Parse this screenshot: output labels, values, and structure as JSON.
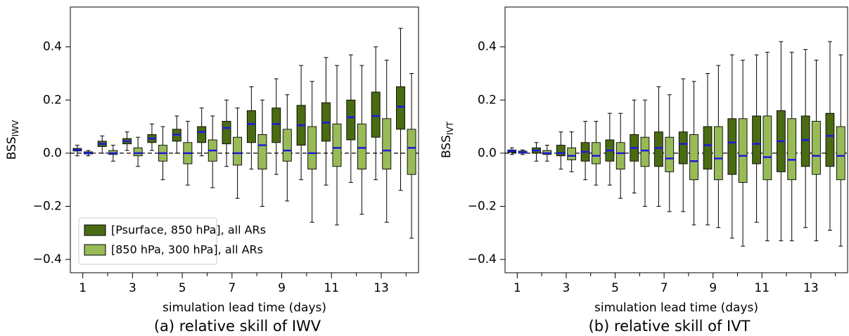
{
  "chart_data": [
    {
      "type": "box",
      "title": "(a) relative skill of IWV",
      "xlabel": "simulation lead time (days)",
      "ylabel": "BSS",
      "ylabel_subscript": "IWV",
      "categories": [
        "1",
        null,
        "3",
        null,
        "5",
        null,
        "7",
        null,
        "9",
        null,
        "11",
        null,
        "13",
        null
      ],
      "ylim": [
        -0.45,
        0.55
      ],
      "yticks": [
        {
          "value": -0.4,
          "label": "−0.4"
        },
        {
          "value": -0.2,
          "label": "−0.2"
        },
        {
          "value": 0,
          "label": "0.0"
        },
        0.2,
        0.4
      ],
      "zero_line": true,
      "median_color": "#1a1adb",
      "legend": "lower left",
      "series": [
        {
          "name": "[Psurface, 850 hPa], all ARs",
          "color": "#4a6b12",
          "whislo": [
            -0.01,
            0.0,
            0.01,
            0.01,
            0.0,
            -0.01,
            -0.05,
            -0.06,
            -0.08,
            -0.1,
            -0.12,
            -0.11,
            -0.1,
            -0.14
          ],
          "q1": [
            0.008,
            0.025,
            0.035,
            0.04,
            0.045,
            0.04,
            0.035,
            0.04,
            0.04,
            0.03,
            0.045,
            0.05,
            0.06,
            0.09
          ],
          "med": [
            0.012,
            0.035,
            0.045,
            0.055,
            0.07,
            0.08,
            0.095,
            0.11,
            0.11,
            0.105,
            0.115,
            0.135,
            0.14,
            0.175
          ],
          "q3": [
            0.018,
            0.045,
            0.055,
            0.07,
            0.09,
            0.1,
            0.12,
            0.16,
            0.17,
            0.18,
            0.19,
            0.2,
            0.23,
            0.25
          ],
          "whishi": [
            0.03,
            0.065,
            0.08,
            0.11,
            0.14,
            0.17,
            0.2,
            0.25,
            0.28,
            0.33,
            0.36,
            0.37,
            0.4,
            0.47
          ]
        },
        {
          "name": "[850 hPa, 300 hPa], all ARs",
          "color": "#98bb58",
          "whislo": [
            -0.01,
            -0.03,
            -0.05,
            -0.1,
            -0.12,
            -0.13,
            -0.17,
            -0.2,
            -0.18,
            -0.26,
            -0.27,
            -0.23,
            -0.26,
            -0.32
          ],
          "q1": [
            -0.003,
            -0.005,
            -0.01,
            -0.03,
            -0.04,
            -0.03,
            -0.045,
            -0.06,
            -0.03,
            -0.06,
            -0.05,
            -0.06,
            -0.06,
            -0.08
          ],
          "med": [
            0.0,
            0.0,
            0.0,
            0.0,
            0.0,
            0.01,
            0.0,
            0.03,
            0.01,
            0.0,
            0.02,
            0.02,
            0.01,
            0.02
          ],
          "q3": [
            0.005,
            0.01,
            0.02,
            0.03,
            0.04,
            0.05,
            0.06,
            0.07,
            0.09,
            0.1,
            0.11,
            0.11,
            0.13,
            0.09
          ],
          "whishi": [
            0.01,
            0.03,
            0.06,
            0.1,
            0.12,
            0.14,
            0.17,
            0.2,
            0.22,
            0.27,
            0.33,
            0.33,
            0.35,
            0.3
          ]
        }
      ]
    },
    {
      "type": "box",
      "title": "(b) relative skill of IVT",
      "xlabel": "simulation lead time (days)",
      "ylabel": "BSS",
      "ylabel_subscript": "IVT",
      "categories": [
        "1",
        null,
        "3",
        null,
        "5",
        null,
        "7",
        null,
        "9",
        null,
        "11",
        null,
        "13",
        null
      ],
      "ylim": [
        -0.45,
        0.55
      ],
      "yticks": [
        {
          "value": -0.4,
          "label": "−0.4"
        },
        {
          "value": -0.2,
          "label": "−0.2"
        },
        {
          "value": 0,
          "label": "0.0"
        },
        0.2,
        0.4
      ],
      "zero_line": true,
      "median_color": "#1a1adb",
      "series": [
        {
          "color": "#4a6b12",
          "whislo": [
            -0.005,
            -0.03,
            -0.06,
            -0.1,
            -0.12,
            -0.15,
            -0.2,
            -0.22,
            -0.27,
            -0.32,
            -0.26,
            -0.33,
            -0.28,
            -0.29
          ],
          "q1": [
            0.003,
            0.0,
            -0.01,
            -0.03,
            -0.03,
            -0.03,
            -0.05,
            -0.04,
            -0.06,
            -0.08,
            -0.04,
            -0.07,
            -0.05,
            -0.05
          ],
          "med": [
            0.008,
            0.01,
            0.0,
            0.005,
            0.01,
            0.02,
            0.02,
            0.035,
            0.03,
            0.04,
            0.035,
            0.045,
            0.05,
            0.065
          ],
          "q3": [
            0.012,
            0.02,
            0.03,
            0.04,
            0.05,
            0.07,
            0.08,
            0.08,
            0.1,
            0.13,
            0.14,
            0.16,
            0.14,
            0.15
          ],
          "whishi": [
            0.02,
            0.04,
            0.08,
            0.12,
            0.15,
            0.2,
            0.25,
            0.28,
            0.3,
            0.37,
            0.37,
            0.42,
            0.39,
            0.42
          ]
        },
        {
          "color": "#98bb58",
          "whislo": [
            -0.005,
            -0.03,
            -0.07,
            -0.12,
            -0.17,
            -0.2,
            -0.22,
            -0.27,
            -0.28,
            -0.35,
            -0.33,
            -0.33,
            -0.33,
            -0.35
          ],
          "q1": [
            0.0,
            -0.005,
            -0.025,
            -0.04,
            -0.06,
            -0.05,
            -0.07,
            -0.1,
            -0.1,
            -0.11,
            -0.1,
            -0.1,
            -0.08,
            -0.1
          ],
          "med": [
            0.003,
            0.0,
            -0.01,
            -0.01,
            0.0,
            0.01,
            -0.02,
            -0.03,
            -0.02,
            -0.01,
            -0.015,
            -0.025,
            -0.01,
            -0.01
          ],
          "q3": [
            0.008,
            0.01,
            0.02,
            0.04,
            0.04,
            0.06,
            0.06,
            0.07,
            0.1,
            0.13,
            0.14,
            0.13,
            0.12,
            0.1
          ],
          "whishi": [
            0.012,
            0.03,
            0.08,
            0.12,
            0.15,
            0.2,
            0.22,
            0.27,
            0.33,
            0.35,
            0.38,
            0.38,
            0.35,
            0.37
          ]
        }
      ]
    }
  ]
}
